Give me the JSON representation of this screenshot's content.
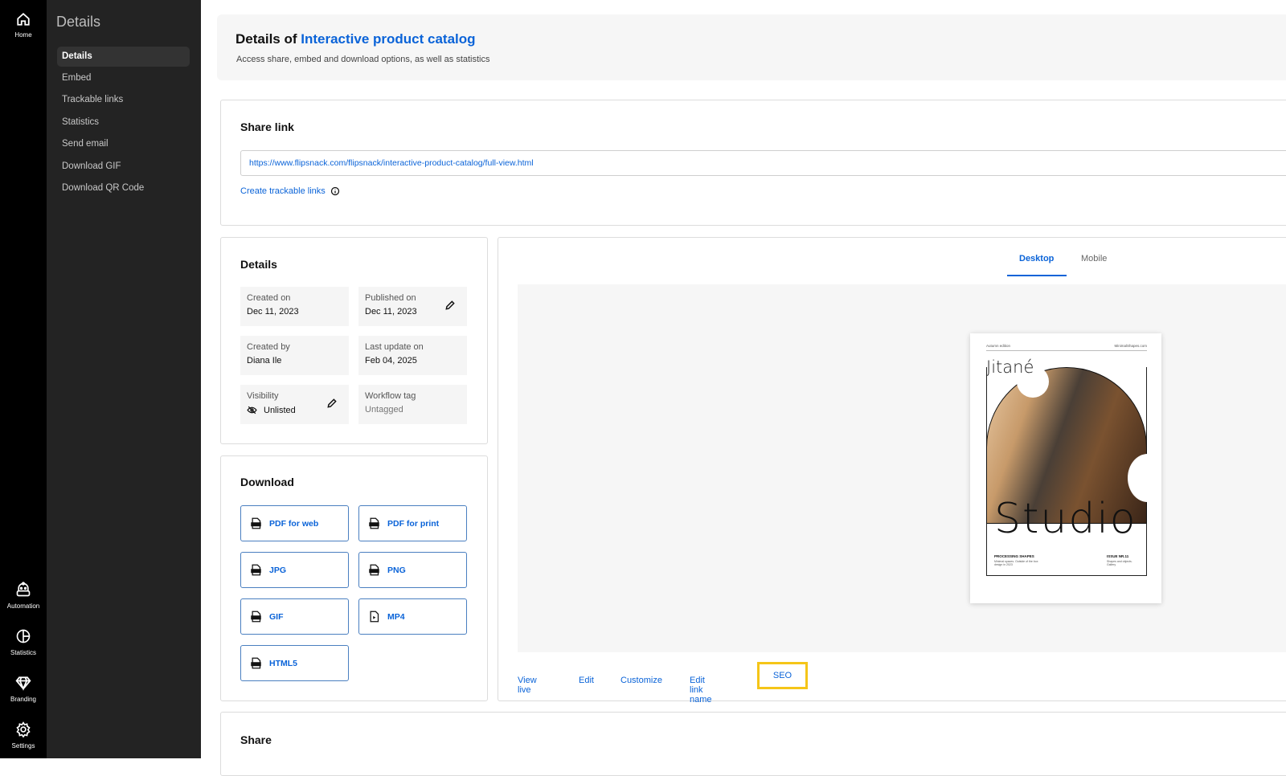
{
  "rail": {
    "top": [
      {
        "label": "Home",
        "icon": "home-icon"
      }
    ],
    "bottom": [
      {
        "label": "Automation",
        "icon": "robot-icon"
      },
      {
        "label": "Statistics",
        "icon": "pie-chart-icon"
      },
      {
        "label": "Branding",
        "icon": "diamond-icon"
      },
      {
        "label": "Settings",
        "icon": "gear-icon"
      }
    ]
  },
  "sidebar": {
    "title": "Details",
    "active": "Details",
    "items": [
      {
        "label": "Details"
      },
      {
        "label": "Embed"
      },
      {
        "label": "Trackable links"
      },
      {
        "label": "Statistics"
      },
      {
        "label": "Send email"
      },
      {
        "label": "Download GIF"
      },
      {
        "label": "Download QR Code"
      }
    ]
  },
  "header": {
    "title_prefix": "Details of ",
    "title_highlight": "Interactive product catalog",
    "subtitle": "Access share, embed and download options, as well as statistics"
  },
  "share_link": {
    "title": "Share link",
    "url": "https://www.flipsnack.com/flipsnack/interactive-product-catalog/full-view.html",
    "trackable_link": "Create trackable links"
  },
  "details": {
    "title": "Details",
    "fields": [
      {
        "label": "Created on",
        "value": "Dec 11, 2023"
      },
      {
        "label": "Published on",
        "value": "Dec 11, 2023",
        "editable": true
      },
      {
        "label": "Created by",
        "value": "Diana Ile"
      },
      {
        "label": "Last update on",
        "value": "Feb 04, 2025"
      },
      {
        "label": "Visibility",
        "value": "Unlisted",
        "editable": true,
        "icon": "eye-off-icon"
      },
      {
        "label": "Workflow tag",
        "value": "Untagged"
      }
    ]
  },
  "download": {
    "title": "Download",
    "buttons": [
      {
        "label": "PDF for web",
        "badge": "PDF"
      },
      {
        "label": "PDF for print",
        "badge": "PDF"
      },
      {
        "label": "JPG",
        "badge": "JPG"
      },
      {
        "label": "PNG",
        "badge": "PNG"
      },
      {
        "label": "GIF",
        "badge": "GIF"
      },
      {
        "label": "MP4",
        "badge": "play"
      },
      {
        "label": "HTML5",
        "badge": "HTML"
      }
    ]
  },
  "preview": {
    "tabs": [
      {
        "label": "Desktop"
      },
      {
        "label": "Mobile"
      }
    ],
    "active_tab": "Desktop",
    "cover": {
      "top_left": "Autumn edition",
      "top_right": "MinimalShapes.com",
      "brand": "Jitané",
      "title": "Studio",
      "bottom_left_title": "PROCESSING SHAPES",
      "bottom_left_text": "Minimal spaces. Outside of the box design in 2023",
      "bottom_right_title": "ISSUE NR.11",
      "bottom_right_text": "Shapes and objects. Gallery"
    },
    "actions": [
      {
        "label": "View live"
      },
      {
        "label": "Edit"
      },
      {
        "label": "Customize"
      },
      {
        "label": "Edit link name"
      },
      {
        "label": "SEO",
        "highlighted": true
      }
    ]
  },
  "share": {
    "title": "Share"
  },
  "colors": {
    "accent": "#0a63d8",
    "highlight": "#f5c518",
    "rail": "#000000",
    "sidebar": "#232323"
  }
}
